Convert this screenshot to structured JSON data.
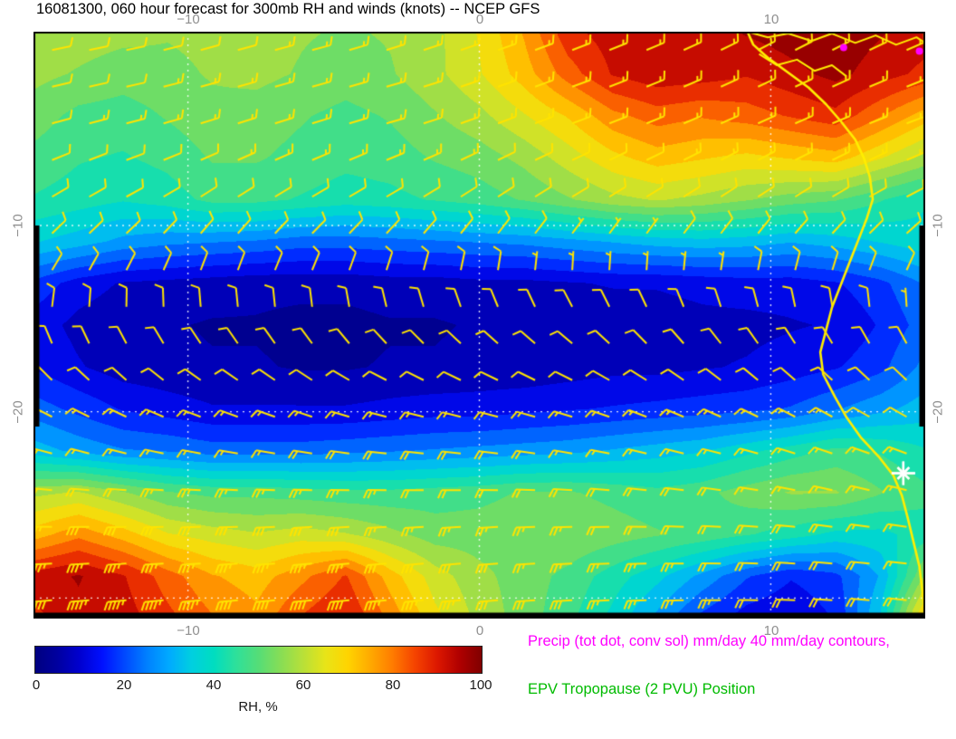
{
  "title": "16081300, 060 hour forecast for 300mb RH and winds (knots) -- NCEP GFS",
  "axes": {
    "x_tick_labels": [
      "−10",
      "0",
      "10"
    ],
    "y_tick_labels": [
      "−10",
      "−20"
    ]
  },
  "colorbar": {
    "ticks": [
      "0",
      "20",
      "40",
      "60",
      "80",
      "100"
    ],
    "label": "RH, %"
  },
  "legend": [
    {
      "text": "Precip (tot dot, conv sol) mm/day 40 mm/day contours,",
      "color": "#ff00ff"
    },
    {
      "text": "EPV Tropopause (2 PVU) Position",
      "color": "#00bb00"
    }
  ],
  "chart_data": {
    "type": "heatmap",
    "title": "16081300, 060 hour forecast for 300mb RH and winds (knots) -- NCEP GFS",
    "field": "300mb relative humidity (%)",
    "overlay": "wind barbs (knots), coastline, precip markers",
    "source": "NCEP GFS",
    "x_range": [
      -15.3,
      15.3
    ],
    "y_range": [
      -31.1,
      0.4
    ],
    "x_ticks": [
      -10,
      0,
      10
    ],
    "y_ticks": [
      -10,
      -20
    ],
    "grid_lons": [
      -10,
      0,
      10
    ],
    "grid_lats": [
      -10,
      -20,
      -30
    ],
    "rh_scale": {
      "min": 0,
      "max": 100,
      "band_width": 5
    },
    "colormap": [
      [
        0.0,
        "#000080"
      ],
      [
        0.05,
        "#0000a0"
      ],
      [
        0.1,
        "#0000d0"
      ],
      [
        0.15,
        "#0010ff"
      ],
      [
        0.2,
        "#0048ff"
      ],
      [
        0.25,
        "#0080ff"
      ],
      [
        0.3,
        "#00aaff"
      ],
      [
        0.35,
        "#00cfe0"
      ],
      [
        0.4,
        "#00ddc0"
      ],
      [
        0.45,
        "#2ee09a"
      ],
      [
        0.5,
        "#55dd77"
      ],
      [
        0.55,
        "#88dd55"
      ],
      [
        0.6,
        "#b8e038"
      ],
      [
        0.65,
        "#e8e418"
      ],
      [
        0.7,
        "#ffd400"
      ],
      [
        0.75,
        "#ffaa00"
      ],
      [
        0.8,
        "#ff7c00"
      ],
      [
        0.85,
        "#f54400"
      ],
      [
        0.9,
        "#dd1800"
      ],
      [
        0.95,
        "#b00000"
      ],
      [
        1.0,
        "#800000"
      ]
    ],
    "rh_grid": {
      "lon_start": -15.3,
      "lon_end": 15.3,
      "lat_start": 0.4,
      "lat_end": -31.1,
      "values": [
        [
          58,
          57,
          56,
          55,
          56,
          57,
          55,
          54,
          55,
          58,
          65,
          75,
          88,
          92,
          90,
          92,
          95,
          97,
          98,
          95,
          92
        ],
        [
          56,
          54,
          52,
          53,
          55,
          56,
          54,
          52,
          54,
          58,
          64,
          72,
          82,
          90,
          93,
          92,
          90,
          93,
          96,
          92,
          88
        ],
        [
          52,
          48,
          47,
          50,
          53,
          52,
          50,
          48,
          50,
          54,
          58,
          64,
          70,
          78,
          82,
          80,
          82,
          85,
          88,
          80,
          72
        ],
        [
          48,
          45,
          44,
          46,
          50,
          50,
          48,
          46,
          47,
          50,
          52,
          56,
          62,
          68,
          72,
          70,
          68,
          70,
          72,
          65,
          58
        ],
        [
          44,
          42,
          40,
          42,
          46,
          46,
          44,
          42,
          43,
          45,
          47,
          50,
          54,
          58,
          60,
          58,
          55,
          52,
          50,
          45,
          40
        ],
        [
          35,
          32,
          28,
          26,
          25,
          24,
          22,
          22,
          23,
          24,
          25,
          26,
          28,
          30,
          32,
          33,
          32,
          30,
          32,
          35,
          38
        ],
        [
          18,
          12,
          9,
          8,
          7,
          6,
          6,
          6,
          7,
          7,
          8,
          8,
          9,
          10,
          10,
          11,
          12,
          12,
          14,
          18,
          25
        ],
        [
          12,
          8,
          6,
          5,
          4,
          4,
          3,
          3,
          4,
          4,
          5,
          5,
          6,
          6,
          7,
          8,
          8,
          9,
          10,
          15,
          22
        ],
        [
          14,
          10,
          7,
          6,
          5,
          5,
          4,
          4,
          5,
          5,
          6,
          6,
          7,
          8,
          8,
          9,
          10,
          12,
          14,
          18,
          26
        ],
        [
          22,
          18,
          14,
          12,
          10,
          10,
          10,
          10,
          11,
          12,
          12,
          13,
          14,
          15,
          16,
          17,
          18,
          20,
          24,
          28,
          32
        ],
        [
          32,
          28,
          25,
          24,
          22,
          22,
          22,
          23,
          24,
          25,
          26,
          27,
          28,
          30,
          32,
          34,
          38,
          42,
          46,
          44,
          40
        ],
        [
          58,
          60,
          55,
          50,
          48,
          48,
          47,
          46,
          46,
          47,
          48,
          50,
          50,
          48,
          46,
          48,
          52,
          55,
          55,
          50,
          46
        ],
        [
          72,
          78,
          72,
          65,
          62,
          60,
          62,
          60,
          56,
          52,
          52,
          53,
          54,
          52,
          50,
          48,
          45,
          42,
          38,
          38,
          42
        ],
        [
          92,
          95,
          90,
          82,
          75,
          72,
          78,
          85,
          72,
          62,
          56,
          52,
          48,
          42,
          36,
          28,
          20,
          15,
          18,
          30,
          55
        ],
        [
          88,
          93,
          92,
          86,
          80,
          76,
          85,
          90,
          78,
          66,
          58,
          52,
          46,
          38,
          28,
          18,
          12,
          10,
          15,
          35,
          72
        ]
      ]
    },
    "wind": {
      "units": "knots",
      "lons": [
        -15.3,
        -12.24,
        -9.18,
        -6.12,
        -3.06,
        0,
        3.06,
        6.12,
        9.18,
        12.24,
        15.3
      ],
      "lats": [
        0.4,
        -4.1,
        -8.6,
        -13.1,
        -17.6,
        -22.1,
        -26.6,
        -31.1
      ],
      "u": [
        [
          -10,
          -10,
          -11,
          -12,
          -12,
          -12,
          -13,
          -14,
          -15,
          -15,
          -14
        ],
        [
          -12,
          -13,
          -14,
          -14,
          -15,
          -14,
          -14,
          -15,
          -16,
          -15,
          -14
        ],
        [
          -8,
          -9,
          -9,
          -10,
          -10,
          -9,
          -8,
          -8,
          -9,
          -10,
          -10
        ],
        [
          -4,
          -3,
          -2,
          -2,
          -1,
          0,
          1,
          1,
          0,
          -1,
          -2
        ],
        [
          6,
          7,
          8,
          8,
          9,
          10,
          10,
          9,
          8,
          7,
          6
        ],
        [
          14,
          15,
          16,
          17,
          18,
          18,
          17,
          16,
          15,
          14,
          13
        ],
        [
          28,
          30,
          32,
          30,
          28,
          26,
          24,
          22,
          20,
          18,
          16
        ],
        [
          45,
          48,
          46,
          42,
          38,
          34,
          30,
          26,
          22,
          20,
          18
        ]
      ],
      "v": [
        [
          -2,
          -2,
          -3,
          -3,
          -4,
          -4,
          -5,
          -6,
          -8,
          -8,
          -6
        ],
        [
          -3,
          -3,
          -4,
          -4,
          -4,
          -5,
          -5,
          -6,
          -7,
          -6,
          -5
        ],
        [
          -5,
          -5,
          -6,
          -6,
          -6,
          -6,
          -5,
          -5,
          -6,
          -6,
          -5
        ],
        [
          -8,
          -8,
          -9,
          -8,
          -8,
          -8,
          -7,
          -7,
          -8,
          -8,
          -7
        ],
        [
          -8,
          -8,
          -7,
          -7,
          -6,
          -6,
          -6,
          -7,
          -8,
          -8,
          -7
        ],
        [
          -4,
          -4,
          -3,
          -3,
          -2,
          -2,
          -3,
          -4,
          -4,
          -5,
          -5
        ],
        [
          0,
          1,
          1,
          2,
          2,
          2,
          1,
          0,
          -1,
          -2,
          -2
        ],
        [
          4,
          5,
          5,
          4,
          4,
          3,
          2,
          1,
          0,
          -1,
          -2
        ]
      ]
    },
    "coastline": [
      [
        9.2,
        0.4
      ],
      [
        9.4,
        -0.3
      ],
      [
        9.9,
        -1.0
      ],
      [
        10.6,
        -1.8
      ],
      [
        11.3,
        -2.6
      ],
      [
        11.9,
        -3.5
      ],
      [
        12.4,
        -4.4
      ],
      [
        12.9,
        -5.4
      ],
      [
        13.2,
        -6.4
      ],
      [
        13.4,
        -7.4
      ],
      [
        13.5,
        -8.6
      ],
      [
        13.3,
        -9.6
      ],
      [
        13.0,
        -10.8
      ],
      [
        12.7,
        -12.0
      ],
      [
        12.4,
        -13.2
      ],
      [
        12.1,
        -14.4
      ],
      [
        11.9,
        -15.6
      ],
      [
        11.7,
        -16.8
      ],
      [
        11.8,
        -18.0
      ],
      [
        12.2,
        -19.2
      ],
      [
        12.6,
        -20.3
      ],
      [
        13.1,
        -21.4
      ],
      [
        13.7,
        -22.4
      ],
      [
        14.2,
        -23.4
      ],
      [
        14.5,
        -24.5
      ],
      [
        14.7,
        -25.7
      ],
      [
        14.9,
        -27.0
      ],
      [
        15.1,
        -28.3
      ],
      [
        15.2,
        -29.6
      ],
      [
        15.3,
        -31.1
      ]
    ],
    "borders": [
      [
        [
          9.2,
          0.4
        ],
        [
          9.9,
          0.1
        ],
        [
          10.6,
          0.3
        ],
        [
          11.4,
          -0.1
        ],
        [
          12.1,
          0.3
        ],
        [
          12.9,
          -0.2
        ],
        [
          13.6,
          0.2
        ],
        [
          14.3,
          -0.3
        ],
        [
          15.0,
          0.1
        ],
        [
          15.3,
          -0.2
        ]
      ],
      [
        [
          9.6,
          -0.8
        ],
        [
          10.2,
          -1.4
        ],
        [
          10.9,
          -1.1
        ],
        [
          11.5,
          -1.7
        ],
        [
          12.1,
          -1.4
        ],
        [
          12.6,
          -2.0
        ]
      ]
    ],
    "markers": [
      {
        "type": "star",
        "lon": 14.55,
        "lat": -23.3,
        "color": "#ffffff"
      },
      {
        "type": "dot",
        "lon": 12.5,
        "lat": -0.45,
        "color": "#ff00ff"
      },
      {
        "type": "dot",
        "lon": 15.1,
        "lat": -0.65,
        "color": "#ff00ff"
      }
    ],
    "style": {
      "barb_color": "#ffe400",
      "coast_color": "#ffee00",
      "grid_color": "rgba(255,255,255,0.85)"
    }
  }
}
